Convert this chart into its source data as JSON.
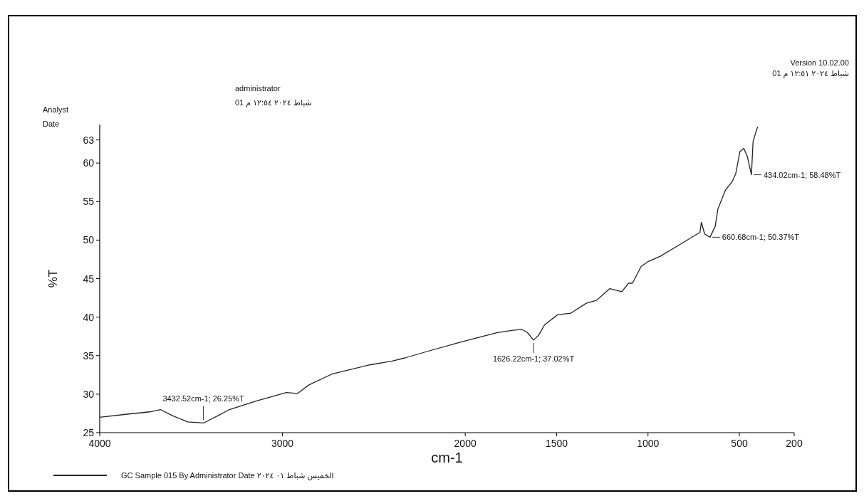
{
  "chart_data": {
    "type": "line",
    "xlabel": "cm-1",
    "ylabel": "%T",
    "xlim": [
      4000,
      200
    ],
    "xticks": [
      4000,
      3000,
      2000,
      1500,
      1000,
      500,
      200
    ],
    "ylim": [
      25,
      65
    ],
    "yticks": [
      25,
      30,
      35,
      40,
      45,
      50,
      55,
      60,
      63
    ],
    "grid": false,
    "legend": "bottom",
    "marker": "none",
    "line_style": "solid",
    "x": [
      4000,
      3850,
      3726,
      3668,
      3602,
      3519,
      3432.52,
      3353,
      3290,
      3145,
      2979,
      2917,
      2855,
      2730,
      2523,
      2400,
      2330,
      2200,
      2020,
      1824,
      1739,
      1690,
      1660,
      1626.22,
      1600,
      1566,
      1495,
      1423,
      1338,
      1280,
      1209,
      1143,
      1107,
      1085,
      1037,
      1000,
      933,
      820,
      716,
      708,
      690,
      660.68,
      632,
      618,
      576,
      539,
      520,
      497,
      476,
      457,
      434.02,
      425,
      410,
      400
    ],
    "series": [
      {
        "name": "GC Sample 015 By Administrator Date الخميس شباط ٠١ ٢٠٢٤",
        "color": "#222222",
        "values": [
          27.0,
          27.4,
          27.7,
          28.0,
          27.2,
          26.4,
          26.25,
          27.2,
          28.0,
          29.1,
          30.2,
          30.1,
          31.2,
          32.6,
          33.8,
          34.3,
          34.7,
          35.6,
          36.8,
          38.0,
          38.3,
          38.4,
          38.0,
          37.02,
          37.6,
          39.0,
          40.3,
          40.5,
          41.8,
          42.2,
          43.7,
          43.3,
          44.4,
          44.4,
          46.6,
          47.2,
          47.9,
          49.5,
          51.0,
          52.3,
          50.8,
          50.37,
          51.8,
          54.0,
          56.5,
          57.6,
          58.6,
          61.5,
          61.9,
          60.9,
          58.48,
          62.8,
          64.0,
          64.7
        ]
      }
    ],
    "annotations": [
      "Analyst",
      "Date",
      "administrator",
      "شباط ٢٠٢٤ ١٢:٥٤ م 01",
      "Version 10.02.00",
      "شباط ٢٠٢٤ ١٢:٥١ م 01",
      {
        "text": "3432.52cm-1; 26.25%T",
        "x": 3432.52,
        "y": 26.25
      },
      {
        "text": "1626.22cm-1; 37.02%T",
        "x": 1626.22,
        "y": 37.02
      },
      {
        "text": "660.68cm-1; 50.37%T",
        "x": 660.68,
        "y": 50.37
      },
      {
        "text": "434.02cm-1; 58.48%T",
        "x": 434.02,
        "y": 58.48
      }
    ]
  }
}
